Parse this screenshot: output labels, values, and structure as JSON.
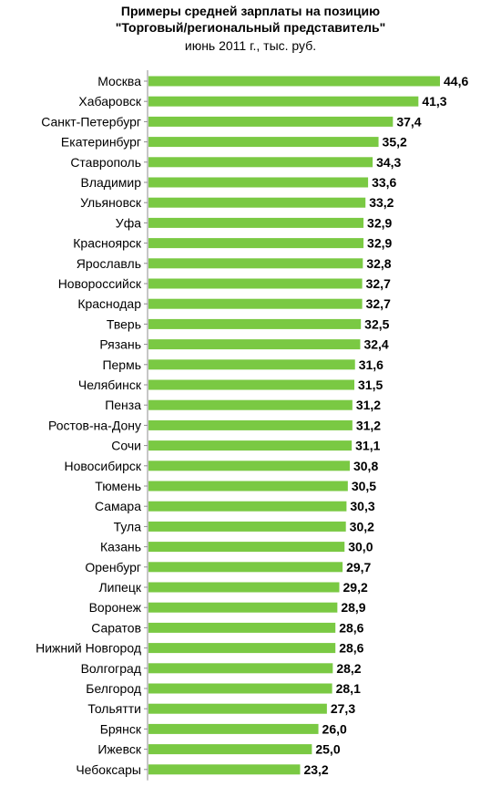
{
  "header": {
    "title_line1": "Примеры средней зарплаты на позицию",
    "title_line2": "\"Торговый/региональный  представитель\"",
    "subtitle": "июнь 2011 г., тыс. руб."
  },
  "colors": {
    "bar": "#7ac943",
    "axis": "#8c8c8c"
  },
  "chart_data": {
    "type": "bar",
    "orientation": "horizontal",
    "title": "Примеры средней зарплаты на позицию \"Торговый/региональный  представитель\"",
    "subtitle": "июнь 2011 г., тыс. руб.",
    "categories": [
      "Москва",
      "Хабаровск",
      "Санкт-Петербург",
      "Екатеринбург",
      "Ставрополь",
      "Владимир",
      "Ульяновск",
      "Уфа",
      "Красноярск",
      "Ярославль",
      "Новороссийск",
      "Краснодар",
      "Тверь",
      "Рязань",
      "Пермь",
      "Челябинск",
      "Пенза",
      "Ростов-на-Дону",
      "Сочи",
      "Новосибирск",
      "Тюмень",
      "Самара",
      "Тула",
      "Казань",
      "Оренбург",
      "Липецк",
      "Воронеж",
      "Саратов",
      "Нижний Новгород",
      "Волгоград",
      "Белгород",
      "Тольятти",
      "Брянск",
      "Ижевск",
      "Чебоксары"
    ],
    "values": [
      44.6,
      41.3,
      37.4,
      35.2,
      34.3,
      33.6,
      33.2,
      32.9,
      32.9,
      32.8,
      32.7,
      32.7,
      32.5,
      32.4,
      31.6,
      31.5,
      31.2,
      31.2,
      31.1,
      30.8,
      30.5,
      30.3,
      30.2,
      30.0,
      29.7,
      29.2,
      28.9,
      28.6,
      28.6,
      28.2,
      28.1,
      27.3,
      26.0,
      25.0,
      23.2
    ],
    "value_labels": [
      "44,6",
      "41,3",
      "37,4",
      "35,2",
      "34,3",
      "33,6",
      "33,2",
      "32,9",
      "32,9",
      "32,8",
      "32,7",
      "32,7",
      "32,5",
      "32,4",
      "31,6",
      "31,5",
      "31,2",
      "31,2",
      "31,1",
      "30,8",
      "30,5",
      "30,3",
      "30,2",
      "30,0",
      "29,7",
      "29,2",
      "28,9",
      "28,6",
      "28,6",
      "28,2",
      "28,1",
      "27,3",
      "26,0",
      "25,0",
      "23,2"
    ],
    "xlim": [
      0,
      44.6
    ],
    "grid": false,
    "legend": "none"
  }
}
